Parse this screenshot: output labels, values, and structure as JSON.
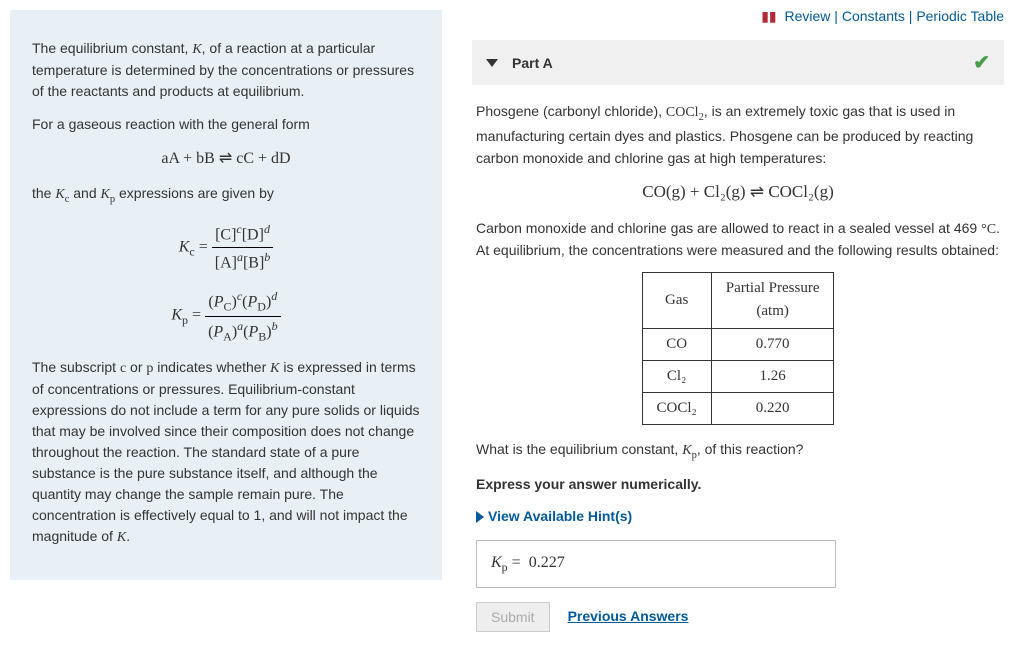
{
  "topLinks": {
    "review": "Review",
    "constants": "Constants",
    "periodic": "Periodic Table"
  },
  "leftPanel": {
    "p1_a": "The equilibrium constant, ",
    "p1_b": ", of a reaction at a particular temperature is determined by the concentrations or pressures of the reactants and products at equilibrium.",
    "p2": "For a gaseous reaction with the general form",
    "eq_general": "aA + bB ⇌ cC + dD",
    "p3_a": "the ",
    "p3_b": " and ",
    "p3_c": " expressions are given by",
    "p4_a": "The subscript ",
    "p4_b": " or ",
    "p4_c": " indicates whether ",
    "p4_d": " is expressed in terms of concentrations or pressures. Equilibrium-constant expressions do not include a term for any pure solids or liquids that may be involved since their composition does not change throughout the reaction. The standard state of a pure substance is the pure substance itself, and although the quantity may change the sample remain pure. The concentration is effectively equal to 1, and will not impact the magnitude of ",
    "p4_e": "."
  },
  "partA": {
    "label": "Part A",
    "intro_a": "Phosgene (carbonyl chloride), ",
    "intro_b": ", is an extremely toxic gas that is used in manufacturing certain dyes and plastics. Phosgene can be produced by reacting carbon monoxide and chlorine gas at high temperatures:",
    "reaction": "CO(g) + Cl₂(g) ⇌ COCl₂(g)",
    "p2_a": "Carbon monoxide and chlorine gas are allowed to react in a sealed vessel at 469 ",
    "p2_b": ". At equilibrium, the concentrations were measured and the following results obtained:",
    "table": {
      "h1": "Gas",
      "h2_a": "Partial Pressure",
      "h2_b": "(atm)",
      "rows": [
        {
          "gas": "CO",
          "p": "0.770"
        },
        {
          "gas": "Cl₂",
          "p": "1.26"
        },
        {
          "gas": "COCl₂",
          "p": "0.220"
        }
      ]
    },
    "question_a": "What is the equilibrium constant, ",
    "question_b": ", of this reaction?",
    "express": "Express your answer numerically.",
    "hints": "View Available Hint(s)",
    "answer_val": "0.227",
    "submit": "Submit",
    "previous": "Previous Answers"
  }
}
